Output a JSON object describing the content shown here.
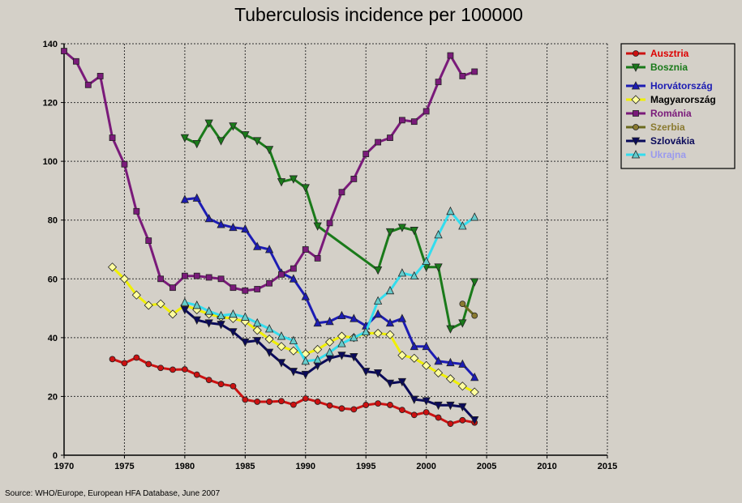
{
  "chart_data": {
    "type": "line",
    "title": "Tuberculosis incidence per 100000",
    "source": "Source: WHO/Europe, European HFA Database, June 2007",
    "xlabel": "",
    "ylabel": "",
    "xlim": [
      1970,
      2015
    ],
    "ylim": [
      0,
      140
    ],
    "x_ticks": [
      1970,
      1975,
      1980,
      1985,
      1990,
      1995,
      2000,
      2005,
      2010,
      2015
    ],
    "y_ticks": [
      0,
      20,
      40,
      60,
      80,
      100,
      120,
      140
    ],
    "grid": true,
    "legend_position": "top-right",
    "series": [
      {
        "name": "Ausztria",
        "color": "#cc1111",
        "text_color": "#dd0000",
        "marker": "circle",
        "marker_fill": "#cc1111",
        "x": [
          1974,
          1975,
          1976,
          1977,
          1978,
          1979,
          1980,
          1981,
          1982,
          1983,
          1984,
          1985,
          1986,
          1987,
          1988,
          1989,
          1990,
          1991,
          1992,
          1993,
          1994,
          1995,
          1996,
          1997,
          1998,
          1999,
          2000,
          2001,
          2002,
          2003,
          2004
        ],
        "y": [
          32.7,
          31.3,
          33.2,
          31,
          29.7,
          29.1,
          29.2,
          27.4,
          25.6,
          24.2,
          23.5,
          18.9,
          18.2,
          18.2,
          18.4,
          17.2,
          19.3,
          18.2,
          16.9,
          15.9,
          15.6,
          17.1,
          17.6,
          17.1,
          15.4,
          13.7,
          14.6,
          12.8,
          10.7,
          11.9,
          11.1
        ]
      },
      {
        "name": "Bosznia",
        "color": "#1a7a1a",
        "text_color": "#1a7a1a",
        "marker": "triangle-down",
        "marker_fill": "#1a7a1a",
        "x": [
          1980,
          1981,
          1982,
          1983,
          1984,
          1985,
          1986,
          1987,
          1988,
          1989,
          1990,
          1991,
          1996,
          1997,
          1998,
          1999,
          2000,
          2001,
          2002,
          2003,
          2004
        ],
        "y": [
          108,
          106,
          113,
          107,
          112,
          109,
          107,
          104,
          93,
          94,
          91,
          78,
          63,
          76,
          77.5,
          76.5,
          64,
          64,
          43,
          45,
          59
        ]
      },
      {
        "name": "Horvátország",
        "color": "#1c1cb4",
        "text_color": "#1c1cb4",
        "marker": "triangle-up",
        "marker_fill": "#1c1cb4",
        "x": [
          1980,
          1981,
          1982,
          1983,
          1984,
          1985,
          1986,
          1987,
          1988,
          1989,
          1990,
          1991,
          1992,
          1993,
          1994,
          1995,
          1996,
          1997,
          1998,
          1999,
          2000,
          2001,
          2002,
          2003,
          2004
        ],
        "y": [
          87,
          87.5,
          80.5,
          78.5,
          77.5,
          77,
          71,
          70,
          62,
          60,
          54,
          45,
          45.5,
          47.5,
          46.5,
          44,
          48,
          45,
          46.5,
          37,
          37,
          32,
          31.5,
          31,
          26.5
        ]
      },
      {
        "name": "Magyarország",
        "color": "#f0f000",
        "text_color": "#000000",
        "marker": "diamond",
        "marker_fill": "#ffffa0",
        "x": [
          1974,
          1975,
          1976,
          1977,
          1978,
          1979,
          1980,
          1981,
          1982,
          1983,
          1984,
          1985,
          1986,
          1987,
          1988,
          1989,
          1990,
          1991,
          1992,
          1993,
          1994,
          1995,
          1996,
          1997,
          1998,
          1999,
          2000,
          2001,
          2002,
          2003,
          2004
        ],
        "y": [
          64,
          60,
          54.5,
          51,
          51.5,
          48,
          51,
          49.5,
          48,
          47,
          46.5,
          45.5,
          42.5,
          39.5,
          37,
          35.5,
          34.5,
          36,
          38.5,
          40.5,
          40,
          41.5,
          41.5,
          41,
          34,
          33,
          30.5,
          28,
          26,
          23.5,
          21.5
        ]
      },
      {
        "name": "Románia",
        "color": "#7a1a7a",
        "text_color": "#7a1a7a",
        "marker": "square",
        "marker_fill": "#7a1a7a",
        "x": [
          1970,
          1971,
          1972,
          1973,
          1974,
          1975,
          1976,
          1977,
          1978,
          1979,
          1980,
          1981,
          1982,
          1983,
          1984,
          1985,
          1986,
          1987,
          1988,
          1989,
          1990,
          1991,
          1992,
          1993,
          1994,
          1995,
          1996,
          1997,
          1998,
          1999,
          2000,
          2001,
          2002,
          2003,
          2004
        ],
        "y": [
          137.5,
          134,
          126,
          129,
          108,
          99,
          83,
          73,
          60,
          57,
          61,
          61,
          60.5,
          60,
          57,
          56,
          56.5,
          58.5,
          61.5,
          63.5,
          70,
          67,
          79,
          89.5,
          94,
          102.5,
          106.5,
          108,
          114,
          113.5,
          117,
          127,
          136,
          129,
          130.5
        ]
      },
      {
        "name": "Szerbia",
        "color": "#6b6b20",
        "text_color": "#8a7a30",
        "marker": "circle",
        "marker_fill": "#8a7a30",
        "x": [
          2003,
          2004
        ],
        "y": [
          51.5,
          47.5
        ]
      },
      {
        "name": "Szlovákia",
        "color": "#0a0a5a",
        "text_color": "#0a0a5a",
        "marker": "triangle-down",
        "marker_fill": "#0a0a5a",
        "x": [
          1980,
          1981,
          1982,
          1983,
          1984,
          1985,
          1986,
          1987,
          1988,
          1989,
          1990,
          1991,
          1992,
          1993,
          1994,
          1995,
          1996,
          1997,
          1998,
          1999,
          2000,
          2001,
          2002,
          2003,
          2004
        ],
        "y": [
          49.5,
          46,
          45,
          44.5,
          42,
          38.5,
          39,
          35,
          31.5,
          28.5,
          27.5,
          30.5,
          33,
          34,
          33.5,
          28.5,
          28,
          24.5,
          25,
          19,
          18.5,
          17,
          17,
          16.5,
          12
        ]
      },
      {
        "name": "Ukrajna",
        "color": "#33ddee",
        "text_color": "#9a9aee",
        "marker": "triangle-up",
        "marker_fill": "#66cccc",
        "x": [
          1980,
          1981,
          1982,
          1983,
          1984,
          1985,
          1986,
          1987,
          1988,
          1989,
          1990,
          1991,
          1992,
          1993,
          1994,
          1995,
          1996,
          1997,
          1998,
          1999,
          2000,
          2001,
          2002,
          2003,
          2004
        ],
        "y": [
          52,
          51,
          49,
          47.5,
          48,
          47,
          45,
          43,
          40.5,
          39,
          32,
          32.5,
          35,
          38,
          40,
          42,
          52.5,
          56,
          62,
          61,
          66,
          75,
          83,
          78,
          81
        ]
      }
    ]
  }
}
